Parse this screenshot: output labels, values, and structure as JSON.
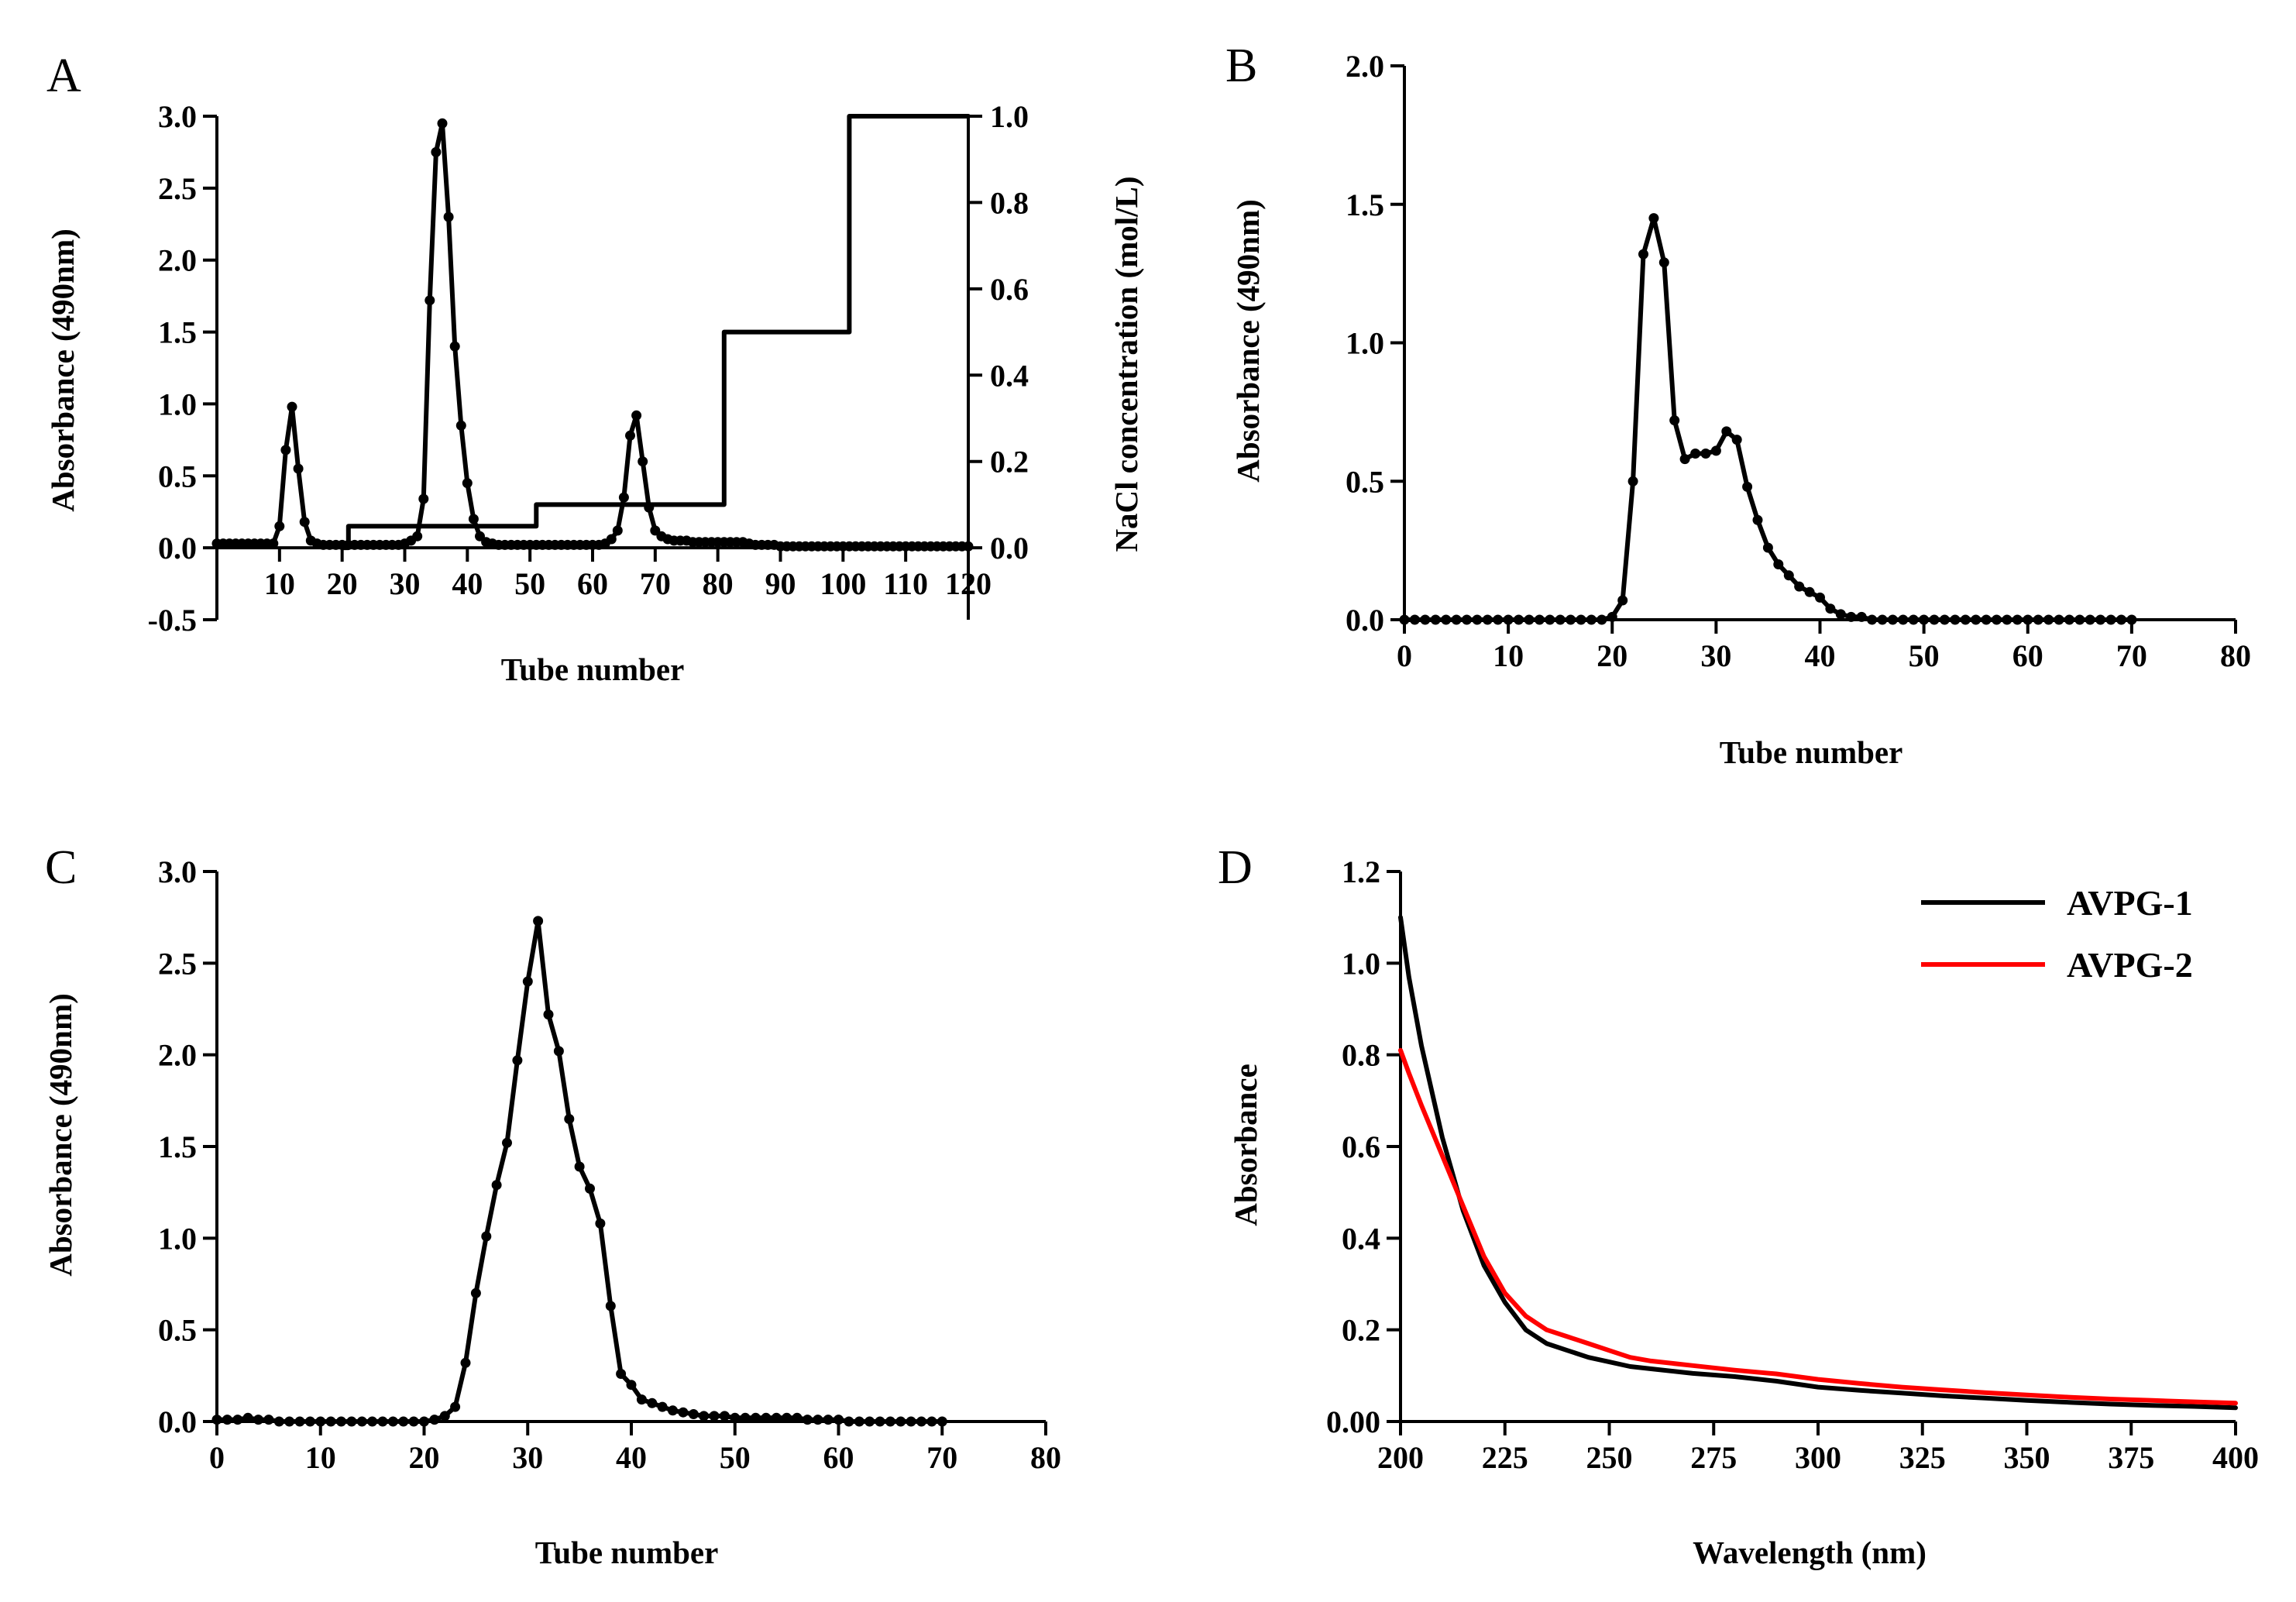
{
  "figure": {
    "panels": [
      "A",
      "B",
      "C",
      "D"
    ]
  },
  "chart_data": [
    {
      "id": "A",
      "type": "line",
      "panel_label": "A",
      "xlabel": "Tube number",
      "ylabel": "Absorbance (490nm)",
      "ylabel_right": "NaCl concentration (mol/L)",
      "xlim": [
        0,
        120
      ],
      "ylim": [
        -0.5,
        3.0
      ],
      "ylim_right": [
        -0.1667,
        1.0
      ],
      "xticks": [
        10,
        20,
        30,
        40,
        50,
        60,
        70,
        80,
        90,
        100,
        110,
        120
      ],
      "xtick_labels": [
        "10",
        "20",
        "30",
        "40",
        "50",
        "60",
        "70",
        "80",
        "90",
        "100",
        "110",
        "120"
      ],
      "yticks": [
        -0.5,
        0.0,
        0.5,
        1.0,
        1.5,
        2.0,
        2.5,
        3.0
      ],
      "ytick_labels": [
        "-0.5",
        "0.0",
        "0.5",
        "1.0",
        "1.5",
        "2.0",
        "2.5",
        "3.0"
      ],
      "yticks_right": [
        0.0,
        0.2,
        0.4,
        0.6,
        0.8,
        1.0
      ],
      "ytick_labels_right": [
        "0.0",
        "0.2",
        "0.4",
        "0.6",
        "0.8",
        "1.0"
      ],
      "series": [
        {
          "name": "Absorbance",
          "axis": "left",
          "color": "#000000",
          "markers": true,
          "x": [
            0,
            1,
            2,
            3,
            4,
            5,
            6,
            7,
            8,
            9,
            10,
            11,
            12,
            13,
            14,
            15,
            16,
            17,
            18,
            19,
            20,
            21,
            22,
            23,
            24,
            25,
            26,
            27,
            28,
            29,
            30,
            31,
            32,
            33,
            34,
            35,
            36,
            37,
            38,
            39,
            40,
            41,
            42,
            43,
            44,
            45,
            46,
            47,
            48,
            49,
            50,
            51,
            52,
            53,
            54,
            55,
            56,
            57,
            58,
            59,
            60,
            61,
            62,
            63,
            64,
            65,
            66,
            67,
            68,
            69,
            70,
            71,
            72,
            73,
            74,
            75,
            76,
            77,
            78,
            79,
            80,
            81,
            82,
            83,
            84,
            85,
            86,
            87,
            88,
            89,
            90,
            91,
            92,
            93,
            94,
            95,
            96,
            97,
            98,
            99,
            100,
            101,
            102,
            103,
            104,
            105,
            106,
            107,
            108,
            109,
            110,
            111,
            112,
            113,
            114,
            115,
            116,
            117,
            118,
            119,
            120
          ],
          "y": [
            0.03,
            0.03,
            0.03,
            0.03,
            0.03,
            0.03,
            0.03,
            0.03,
            0.03,
            0.03,
            0.15,
            0.68,
            0.98,
            0.55,
            0.18,
            0.05,
            0.03,
            0.02,
            0.02,
            0.02,
            0.02,
            0.02,
            0.02,
            0.02,
            0.02,
            0.02,
            0.02,
            0.02,
            0.02,
            0.02,
            0.03,
            0.05,
            0.08,
            0.34,
            1.72,
            2.75,
            2.95,
            2.3,
            1.4,
            0.85,
            0.45,
            0.2,
            0.08,
            0.04,
            0.03,
            0.02,
            0.02,
            0.02,
            0.02,
            0.02,
            0.02,
            0.02,
            0.02,
            0.02,
            0.02,
            0.02,
            0.02,
            0.02,
            0.02,
            0.02,
            0.02,
            0.02,
            0.03,
            0.06,
            0.12,
            0.35,
            0.78,
            0.92,
            0.6,
            0.28,
            0.12,
            0.08,
            0.06,
            0.05,
            0.05,
            0.05,
            0.04,
            0.04,
            0.04,
            0.04,
            0.04,
            0.04,
            0.04,
            0.04,
            0.04,
            0.03,
            0.02,
            0.02,
            0.02,
            0.02,
            0.01,
            0.01,
            0.01,
            0.01,
            0.01,
            0.01,
            0.01,
            0.01,
            0.01,
            0.01,
            0.01,
            0.01,
            0.01,
            0.01,
            0.01,
            0.01,
            0.01,
            0.01,
            0.01,
            0.01,
            0.01,
            0.01,
            0.01,
            0.01,
            0.01,
            0.01,
            0.01,
            0.01,
            0.01,
            0.01,
            0.01
          ]
        },
        {
          "name": "NaCl concentration",
          "axis": "right",
          "color": "#000000",
          "markers": false,
          "x": [
            20,
            21,
            21,
            50,
            51,
            51,
            80,
            81,
            81,
            100,
            101,
            101,
            120
          ],
          "y": [
            0.0,
            0.0,
            0.05,
            0.05,
            0.05,
            0.1,
            0.1,
            0.1,
            0.5,
            0.5,
            0.5,
            1.0,
            1.0
          ]
        }
      ]
    },
    {
      "id": "B",
      "type": "line",
      "panel_label": "B",
      "xlabel": "Tube number",
      "ylabel": "Absorbance (490nm)",
      "xlim": [
        0,
        80
      ],
      "ylim": [
        0.0,
        2.0
      ],
      "xticks": [
        0,
        10,
        20,
        30,
        40,
        50,
        60,
        70,
        80
      ],
      "xtick_labels": [
        "0",
        "10",
        "20",
        "30",
        "40",
        "50",
        "60",
        "70",
        "80"
      ],
      "yticks": [
        0.0,
        0.5,
        1.0,
        1.5,
        2.0
      ],
      "ytick_labels": [
        "0.0",
        "0.5",
        "1.0",
        "1.5",
        "2.0"
      ],
      "series": [
        {
          "name": "Absorbance",
          "color": "#000000",
          "markers": true,
          "x": [
            0,
            1,
            2,
            3,
            4,
            5,
            6,
            7,
            8,
            9,
            10,
            11,
            12,
            13,
            14,
            15,
            16,
            17,
            18,
            19,
            20,
            21,
            22,
            23,
            24,
            25,
            26,
            27,
            28,
            29,
            30,
            31,
            32,
            33,
            34,
            35,
            36,
            37,
            38,
            39,
            40,
            41,
            42,
            43,
            44,
            45,
            46,
            47,
            48,
            49,
            50,
            51,
            52,
            53,
            54,
            55,
            56,
            57,
            58,
            59,
            60,
            61,
            62,
            63,
            64,
            65,
            66,
            67,
            68,
            69,
            70
          ],
          "y": [
            0,
            0,
            0,
            0,
            0,
            0,
            0,
            0,
            0,
            0,
            0,
            0,
            0,
            0,
            0,
            0,
            0,
            0,
            0,
            0,
            0.01,
            0.07,
            0.5,
            1.32,
            1.45,
            1.29,
            0.72,
            0.58,
            0.6,
            0.6,
            0.61,
            0.68,
            0.65,
            0.48,
            0.36,
            0.26,
            0.2,
            0.16,
            0.12,
            0.1,
            0.08,
            0.04,
            0.02,
            0.01,
            0.01,
            0,
            0,
            0,
            0,
            0,
            0,
            0,
            0,
            0,
            0,
            0,
            0,
            0,
            0,
            0,
            0,
            0,
            0,
            0,
            0,
            0,
            0,
            0,
            0,
            0,
            0
          ]
        }
      ]
    },
    {
      "id": "C",
      "type": "line",
      "panel_label": "C",
      "xlabel": "Tube number",
      "ylabel": "Absorbance (490nm)",
      "xlim": [
        0,
        80
      ],
      "ylim": [
        0.0,
        3.0
      ],
      "xticks": [
        0,
        10,
        20,
        30,
        40,
        50,
        60,
        70,
        80
      ],
      "xtick_labels": [
        "0",
        "10",
        "20",
        "30",
        "40",
        "50",
        "60",
        "70",
        "80"
      ],
      "yticks": [
        0.0,
        0.5,
        1.0,
        1.5,
        2.0,
        2.5,
        3.0
      ],
      "ytick_labels": [
        "0.0",
        "0.5",
        "1.0",
        "1.5",
        "2.0",
        "2.5",
        "3.0"
      ],
      "series": [
        {
          "name": "Absorbance",
          "color": "#000000",
          "markers": true,
          "x": [
            0,
            1,
            2,
            3,
            4,
            5,
            6,
            7,
            8,
            9,
            10,
            11,
            12,
            13,
            14,
            15,
            16,
            17,
            18,
            19,
            20,
            21,
            22,
            23,
            24,
            25,
            26,
            27,
            28,
            29,
            30,
            31,
            32,
            33,
            34,
            35,
            36,
            37,
            38,
            39,
            40,
            41,
            42,
            43,
            44,
            45,
            46,
            47,
            48,
            49,
            50,
            51,
            52,
            53,
            54,
            55,
            56,
            57,
            58,
            59,
            60,
            61,
            62,
            63,
            64,
            65,
            66,
            67,
            68,
            69,
            70
          ],
          "y": [
            0.01,
            0.01,
            0.01,
            0.02,
            0.01,
            0.01,
            0,
            0,
            0,
            0,
            0,
            0,
            0,
            0,
            0,
            0,
            0,
            0,
            0,
            0,
            0,
            0.01,
            0.03,
            0.08,
            0.32,
            0.7,
            1.01,
            1.29,
            1.52,
            1.97,
            2.4,
            2.73,
            2.22,
            2.02,
            1.65,
            1.39,
            1.27,
            1.08,
            0.63,
            0.26,
            0.2,
            0.12,
            0.1,
            0.08,
            0.06,
            0.05,
            0.04,
            0.03,
            0.03,
            0.03,
            0.02,
            0.02,
            0.02,
            0.02,
            0.02,
            0.02,
            0.02,
            0.01,
            0.01,
            0.01,
            0.01,
            0,
            0,
            0,
            0,
            0,
            0,
            0,
            0,
            0,
            0
          ]
        }
      ]
    },
    {
      "id": "D",
      "type": "line",
      "panel_label": "D",
      "xlabel": "Wavelength (nm)",
      "ylabel": "Absorbance",
      "xlim": [
        200,
        400
      ],
      "ylim": [
        0.0,
        1.2
      ],
      "xticks": [
        200,
        225,
        250,
        275,
        300,
        325,
        350,
        375,
        400
      ],
      "xtick_labels": [
        "200",
        "225",
        "250",
        "275",
        "300",
        "325",
        "350",
        "375",
        "400"
      ],
      "yticks": [
        0.0,
        0.2,
        0.4,
        0.6,
        0.8,
        1.0,
        1.2
      ],
      "ytick_labels": [
        "0.00",
        "0.2",
        "0.4",
        "0.6",
        "0.8",
        "1.0",
        "1.2"
      ],
      "legend_position": "top-right",
      "series": [
        {
          "name": "AVPG-1",
          "color": "#000000",
          "markers": false,
          "x": [
            200,
            202,
            205,
            210,
            215,
            220,
            225,
            230,
            235,
            240,
            245,
            250,
            255,
            260,
            270,
            280,
            290,
            300,
            310,
            320,
            330,
            340,
            350,
            360,
            370,
            380,
            390,
            400
          ],
          "y": [
            1.1,
            0.97,
            0.82,
            0.62,
            0.46,
            0.34,
            0.26,
            0.2,
            0.17,
            0.155,
            0.14,
            0.13,
            0.12,
            0.115,
            0.105,
            0.098,
            0.088,
            0.075,
            0.068,
            0.062,
            0.056,
            0.051,
            0.046,
            0.042,
            0.038,
            0.035,
            0.033,
            0.03
          ]
        },
        {
          "name": "AVPG-2",
          "color": "#ff0000",
          "markers": false,
          "x": [
            200,
            202,
            205,
            210,
            215,
            220,
            225,
            230,
            235,
            240,
            245,
            250,
            255,
            260,
            270,
            280,
            290,
            300,
            310,
            320,
            330,
            340,
            350,
            360,
            370,
            380,
            390,
            400
          ],
          "y": [
            0.81,
            0.76,
            0.69,
            0.58,
            0.47,
            0.36,
            0.28,
            0.23,
            0.2,
            0.185,
            0.17,
            0.155,
            0.14,
            0.132,
            0.122,
            0.112,
            0.104,
            0.092,
            0.083,
            0.075,
            0.069,
            0.063,
            0.058,
            0.053,
            0.049,
            0.046,
            0.043,
            0.04
          ]
        }
      ]
    }
  ]
}
